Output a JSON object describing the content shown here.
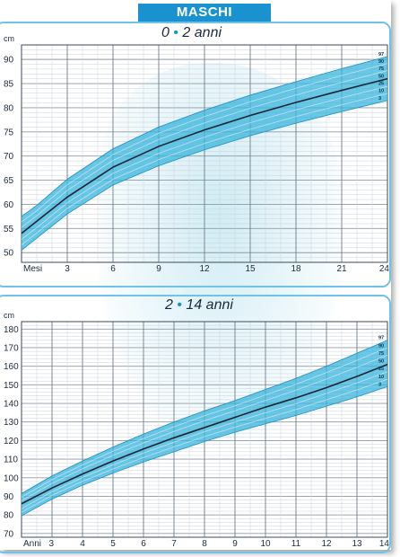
{
  "header": {
    "label": "MASCHI"
  },
  "chart_data": [
    {
      "type": "line",
      "title_main": "0",
      "title_rest": "2 anni",
      "ylabel": "cm",
      "xlabel": "Mesi",
      "x_ticks": [
        "3",
        "6",
        "9",
        "12",
        "15",
        "18",
        "21",
        "24"
      ],
      "y_ticks": [
        "50",
        "55",
        "60",
        "65",
        "70",
        "75",
        "80",
        "85",
        "90"
      ],
      "xlim": [
        0,
        24
      ],
      "ylim": [
        48,
        93
      ],
      "percentile_labels": [
        "97",
        "90",
        "75",
        "50",
        "25",
        "10",
        "3"
      ],
      "series": [
        {
          "name": "97",
          "x": [
            0,
            1,
            3,
            6,
            9,
            12,
            15,
            18,
            21,
            24
          ],
          "y": [
            57.5,
            59.8,
            65.2,
            71.5,
            76.0,
            79.5,
            82.6,
            85.4,
            88.1,
            90.6
          ]
        },
        {
          "name": "3",
          "x": [
            0,
            1,
            3,
            6,
            9,
            12,
            15,
            18,
            21,
            24
          ],
          "y": [
            50.5,
            53.0,
            58.0,
            64.0,
            68.0,
            71.3,
            74.2,
            76.8,
            79.2,
            81.5
          ]
        },
        {
          "name": "50",
          "x": [
            0,
            1,
            3,
            6,
            9,
            12,
            15,
            18,
            21,
            24
          ],
          "y": [
            54.0,
            56.5,
            61.5,
            67.7,
            72.0,
            75.4,
            78.4,
            81.1,
            83.6,
            86.0
          ]
        }
      ]
    },
    {
      "type": "line",
      "title_main": "2",
      "title_rest": "14 anni",
      "ylabel": "cm",
      "xlabel": "Anni",
      "x_ticks": [
        "3",
        "4",
        "5",
        "6",
        "7",
        "8",
        "9",
        "10",
        "11",
        "12",
        "13",
        "14"
      ],
      "y_ticks": [
        "70",
        "80",
        "90",
        "100",
        "110",
        "120",
        "130",
        "140",
        "150",
        "160",
        "170",
        "180"
      ],
      "xlim": [
        2,
        14
      ],
      "ylim": [
        68,
        184
      ],
      "percentile_labels": [
        "97",
        "90",
        "75",
        "50",
        "25",
        "10",
        "3"
      ],
      "series": [
        {
          "name": "97",
          "x": [
            2,
            3,
            4,
            5,
            6,
            7,
            8,
            9,
            10,
            11,
            12,
            13,
            14
          ],
          "y": [
            91.5,
            101,
            109,
            116.5,
            123.5,
            130,
            136,
            141.5,
            147.5,
            153.5,
            160,
            167,
            174
          ]
        },
        {
          "name": "3",
          "x": [
            2,
            3,
            4,
            5,
            6,
            7,
            8,
            9,
            10,
            11,
            12,
            13,
            14
          ],
          "y": [
            79.5,
            88.5,
            96,
            102.5,
            108.5,
            114,
            119.5,
            124.5,
            129,
            133.5,
            138.5,
            143.5,
            149
          ]
        },
        {
          "name": "50",
          "x": [
            2,
            3,
            4,
            5,
            6,
            7,
            8,
            9,
            10,
            11,
            12,
            13,
            14
          ],
          "y": [
            86,
            94.5,
            102,
            109,
            115.5,
            121.5,
            127,
            132.5,
            138,
            143,
            148.5,
            154.5,
            161
          ]
        }
      ]
    }
  ]
}
